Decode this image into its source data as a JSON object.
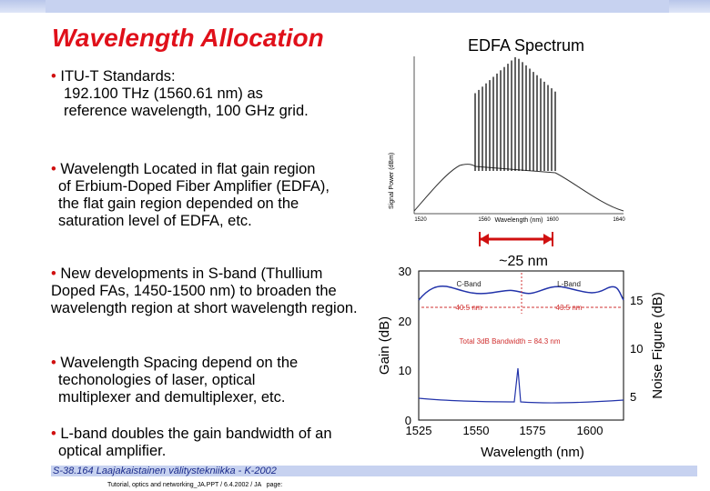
{
  "title": "Wavelength Allocation",
  "bullets": [
    {
      "text": "ITU-T Standards:",
      "detail": "192.100 THz (1560.61 nm) as reference wavelength, 100 GHz grid."
    },
    {
      "text": "Wavelength Located in flat gain region of Erbium-Doped Fiber Amplifier (EDFA), the flat gain region depended on the saturation level of EDFA, etc."
    },
    {
      "text": "New developments in S-band (Thullium Doped  FAs, 1450-1500 nm) to   broaden the wavelength region at short wavelength region."
    },
    {
      "text": "Wavelength Spacing depend on the techonologies of laser, optical multiplexer and demultiplexer, etc."
    },
    {
      "text": "L-band doubles the gain bandwidth of an optical amplifier."
    }
  ],
  "spectrum": {
    "title": "EDFA Spectrum",
    "x_label": "Wavelength (nm)",
    "y_label": "Signal Power (dBm)",
    "x_ticks": [
      "1520",
      "1560",
      "1600",
      "1640"
    ],
    "annotation": "~25 nm"
  },
  "gain_chart": {
    "y_label": "Gain (dB)",
    "y2_label": "Noise Figure (dB)",
    "x_label": "Wavelength (nm)",
    "y_ticks": [
      "0",
      "10",
      "20",
      "30"
    ],
    "y2_ticks": [
      "5",
      "10",
      "15"
    ],
    "x_ticks": [
      "1525",
      "1550",
      "1575",
      "1600"
    ],
    "bands": [
      "C-Band",
      "L-Band"
    ],
    "band_widths": [
      "40.5 nm",
      "43.5 nm"
    ],
    "total": "Total 3dB Bandwidth = 84.3 nm"
  },
  "footer": {
    "course": "S-38.164 Laajakaistainen välitystekniikka - K-2002",
    "info": "Tutorial, optics and networking_JA.PPT / 6.4.2002 / JA   page:"
  }
}
